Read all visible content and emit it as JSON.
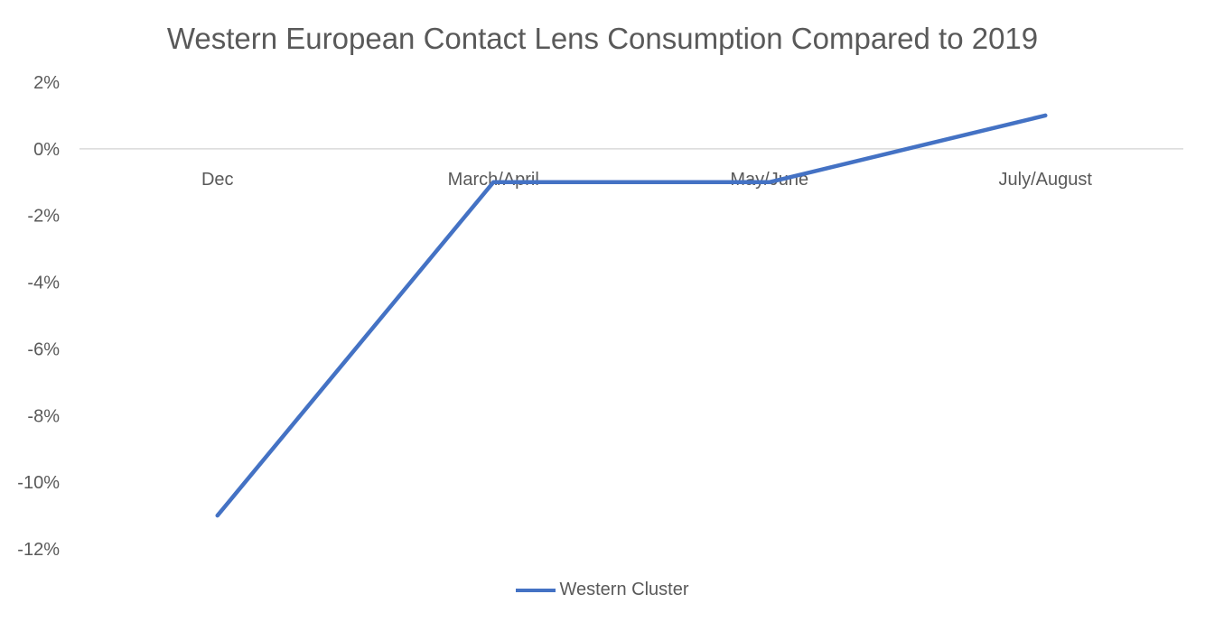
{
  "chart_data": {
    "type": "line",
    "title": "Western European Contact Lens Consumption Compared to 2019",
    "xlabel": "",
    "ylabel": "",
    "categories": [
      "Dec",
      "March/April",
      "May/June",
      "July/August"
    ],
    "series": [
      {
        "name": "Western Cluster",
        "values": [
          -11,
          -1,
          -1,
          1
        ],
        "color": "#4472C4"
      }
    ],
    "ylim": [
      -12,
      2
    ],
    "yticks": [
      2,
      0,
      -2,
      -4,
      -6,
      -8,
      -10,
      -12
    ],
    "ytick_labels": [
      "2%",
      "0%",
      "-2%",
      "-4%",
      "-6%",
      "-8%",
      "-10%",
      "-12%"
    ],
    "grid": false,
    "zero_line": true,
    "legend_position": "bottom"
  }
}
